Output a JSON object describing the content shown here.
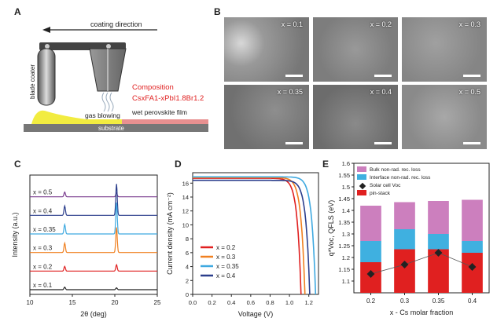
{
  "panel_a": {
    "label": "A",
    "coating_direction": "coating direction",
    "blade_coater": "blade coater",
    "gas_blowing": "gas blowing",
    "composition_title": "Composition",
    "composition_formula": "CsxFA1-xPbI1.8Br1.2",
    "wet_film": "wet perovskite film",
    "substrate": "substrate",
    "colors": {
      "title": "#e02020",
      "film": "#f2ec40",
      "substrate": "#777777"
    }
  },
  "panel_b": {
    "label": "B",
    "images": [
      {
        "label": "x = 0.1"
      },
      {
        "label": "x = 0.2"
      },
      {
        "label": "x = 0.3"
      },
      {
        "label": "x = 0.35"
      },
      {
        "label": "x = 0.4"
      },
      {
        "label": "x = 0.5"
      }
    ]
  },
  "chart_data": [
    {
      "panel": "C",
      "type": "line",
      "xlabel": "2θ (deg)",
      "ylabel": "Intensity (a.u.)",
      "xlim": [
        10,
        25
      ],
      "xticks": [
        10,
        15,
        20,
        25
      ],
      "series": [
        {
          "name": "x = 0.5",
          "color": "#7a3d8f",
          "peaks": [
            {
              "x": 14.1,
              "h": 0.15
            },
            {
              "x": 20.2,
              "h": 0.12
            }
          ]
        },
        {
          "name": "x = 0.4",
          "color": "#2b3e8c",
          "peaks": [
            {
              "x": 14.1,
              "h": 0.3
            },
            {
              "x": 20.2,
              "h": 1.0
            }
          ]
        },
        {
          "name": "x = 0.35",
          "color": "#3fa9e0",
          "peaks": [
            {
              "x": 14.1,
              "h": 0.3
            },
            {
              "x": 20.2,
              "h": 1.0
            }
          ]
        },
        {
          "name": "x = 0.3",
          "color": "#f08020",
          "peaks": [
            {
              "x": 14.1,
              "h": 0.3
            },
            {
              "x": 20.2,
              "h": 0.8
            }
          ]
        },
        {
          "name": "x = 0.2",
          "color": "#e02020",
          "peaks": [
            {
              "x": 14.1,
              "h": 0.15
            },
            {
              "x": 20.2,
              "h": 0.2
            }
          ]
        },
        {
          "name": "x = 0.1",
          "color": "#222222",
          "peaks": [
            {
              "x": 14.1,
              "h": 0.08
            },
            {
              "x": 20.2,
              "h": 0.06
            }
          ]
        }
      ]
    },
    {
      "panel": "D",
      "type": "line",
      "xlabel": "Voltage (V)",
      "ylabel": "Current density (mA cm⁻²)",
      "xlim": [
        0,
        1.3
      ],
      "ylim": [
        0,
        17.5
      ],
      "xticks": [
        0.0,
        0.2,
        0.4,
        0.6,
        0.8,
        1.0,
        1.2
      ],
      "yticks": [
        0,
        2,
        4,
        6,
        8,
        10,
        12,
        14,
        16
      ],
      "series": [
        {
          "name": "x = 0.2",
          "color": "#e02020",
          "jsc": 16.7,
          "voc": 1.12
        },
        {
          "name": "x = 0.3",
          "color": "#f08020",
          "jsc": 16.8,
          "voc": 1.16
        },
        {
          "name": "x = 0.35",
          "color": "#3fa9e0",
          "jsc": 16.9,
          "voc": 1.27
        },
        {
          "name": "x = 0.4",
          "color": "#2b3e8c",
          "jsc": 16.4,
          "voc": 1.21
        }
      ]
    },
    {
      "panel": "E",
      "type": "bar",
      "xlabel": "x - Cs molar fraction",
      "ylabel": "q*Voc, QFLS (eV)",
      "ylim": [
        1.05,
        1.6
      ],
      "yticks": [
        1.1,
        1.15,
        1.2,
        1.25,
        1.3,
        1.35,
        1.4,
        1.45,
        1.5,
        1.55,
        1.6
      ],
      "categories": [
        "0.2",
        "0.3",
        "0.35",
        "0.4"
      ],
      "stacks": {
        "pin_stack": [
          1.18,
          1.235,
          1.235,
          1.22
        ],
        "interface_top": [
          1.27,
          1.32,
          1.3,
          1.27
        ],
        "bulk_top": [
          1.42,
          1.435,
          1.44,
          1.445
        ]
      },
      "solar_cell_voc": [
        1.13,
        1.17,
        1.22,
        1.16
      ],
      "legend": [
        {
          "name": "Bulk non-rad. rec. loss",
          "color": "#cc7fbe"
        },
        {
          "name": "Interface non-rad. rec. loss",
          "color": "#3fb0e0"
        },
        {
          "name": "Solar cell Voc",
          "color": "#222222"
        },
        {
          "name": "pin-stack",
          "color": "#e02020"
        }
      ]
    }
  ]
}
